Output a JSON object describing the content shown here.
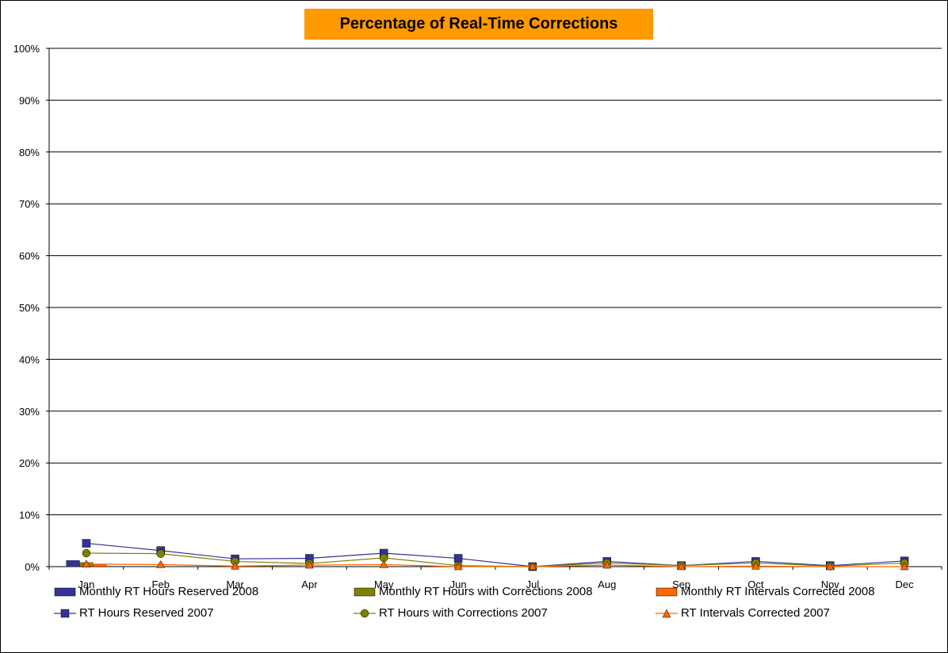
{
  "chart_data": {
    "type": "bar",
    "title": "Percentage of Real-Time Corrections",
    "categories": [
      "Jan",
      "Feb",
      "Mar",
      "Apr",
      "May",
      "Jun",
      "Jul",
      "Aug",
      "Sep",
      "Oct",
      "Nov",
      "Dec"
    ],
    "y_ticks": [
      "0%",
      "10%",
      "20%",
      "30%",
      "40%",
      "50%",
      "60%",
      "70%",
      "80%",
      "90%",
      "100%"
    ],
    "ylim": [
      0,
      100
    ],
    "grid": true,
    "legend_position": "bottom",
    "bar_series": [
      {
        "name": "Monthly RT Hours Reserved 2008",
        "color": "#333399",
        "values": [
          1.2,
          null,
          null,
          null,
          null,
          null,
          null,
          null,
          null,
          null,
          null,
          null
        ]
      },
      {
        "name": "Monthly RT Hours with Corrections 2008",
        "color": "#808000",
        "values": [
          0.8,
          null,
          null,
          null,
          null,
          null,
          null,
          null,
          null,
          null,
          null,
          null
        ]
      },
      {
        "name": "Monthly RT Intervals Corrected 2008",
        "color": "#ff6600",
        "values": [
          0.4,
          null,
          null,
          null,
          null,
          null,
          null,
          null,
          null,
          null,
          null,
          null
        ]
      }
    ],
    "line_series": [
      {
        "name": "RT Hours Reserved 2007",
        "color": "#333399",
        "marker": "square",
        "values": [
          4.5,
          3.1,
          1.5,
          1.6,
          2.6,
          1.6,
          0.0,
          1.0,
          0.2,
          1.0,
          0.2,
          1.1
        ]
      },
      {
        "name": "RT Hours with Corrections 2007",
        "color": "#808000",
        "marker": "circle",
        "values": [
          2.6,
          2.5,
          1.0,
          0.6,
          1.7,
          0.2,
          0.0,
          0.7,
          0.2,
          0.7,
          0.1,
          0.7
        ]
      },
      {
        "name": "RT Intervals Corrected 2007",
        "color": "#ff6600",
        "marker": "triangle",
        "values": [
          0.5,
          0.4,
          0.1,
          0.3,
          0.4,
          0.0,
          0.0,
          0.3,
          0.0,
          0.1,
          0.0,
          0.0
        ]
      }
    ]
  }
}
